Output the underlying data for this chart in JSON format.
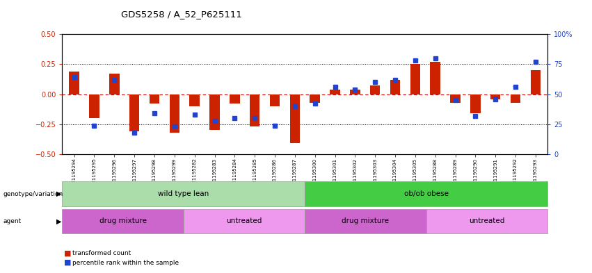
{
  "title": "GDS5258 / A_52_P625111",
  "samples": [
    "GSM1195294",
    "GSM1195295",
    "GSM1195296",
    "GSM1195297",
    "GSM1195298",
    "GSM1195299",
    "GSM1195282",
    "GSM1195283",
    "GSM1195284",
    "GSM1195285",
    "GSM1195286",
    "GSM1195287",
    "GSM1195300",
    "GSM1195301",
    "GSM1195302",
    "GSM1195303",
    "GSM1195304",
    "GSM1195305",
    "GSM1195288",
    "GSM1195289",
    "GSM1195290",
    "GSM1195291",
    "GSM1195292",
    "GSM1195293"
  ],
  "red_bars": [
    0.19,
    -0.2,
    0.17,
    -0.31,
    -0.08,
    -0.32,
    -0.1,
    -0.3,
    -0.08,
    -0.27,
    -0.1,
    -0.41,
    -0.07,
    0.04,
    0.04,
    0.07,
    0.12,
    0.25,
    0.27,
    -0.07,
    -0.16,
    -0.04,
    -0.07,
    0.2
  ],
  "blue_dots": [
    0.14,
    -0.26,
    0.12,
    -0.32,
    -0.16,
    -0.27,
    -0.17,
    -0.22,
    -0.2,
    -0.2,
    -0.26,
    -0.1,
    -0.08,
    0.06,
    0.04,
    0.1,
    0.12,
    0.28,
    0.3,
    -0.05,
    -0.18,
    -0.04,
    0.06,
    0.27
  ],
  "genotype_groups": [
    {
      "label": "wild type lean",
      "start": 0,
      "end": 11,
      "color": "#aaddaa"
    },
    {
      "label": "ob/ob obese",
      "start": 12,
      "end": 23,
      "color": "#44cc44"
    }
  ],
  "agent_groups": [
    {
      "label": "drug mixture",
      "start": 0,
      "end": 5,
      "color": "#cc66cc"
    },
    {
      "label": "untreated",
      "start": 6,
      "end": 11,
      "color": "#ee99ee"
    },
    {
      "label": "drug mixture",
      "start": 12,
      "end": 17,
      "color": "#cc66cc"
    },
    {
      "label": "untreated",
      "start": 18,
      "end": 23,
      "color": "#ee99ee"
    }
  ],
  "ylim": [
    -0.5,
    0.5
  ],
  "yticks_left": [
    -0.5,
    -0.25,
    0.0,
    0.25,
    0.5
  ],
  "right_tick_positions": [
    -0.5,
    -0.25,
    0.0,
    0.25,
    0.5
  ],
  "right_tick_labels": [
    "0",
    "25",
    "50",
    "75",
    "100%"
  ],
  "bar_color": "#CC2200",
  "dot_color": "#2244CC",
  "hline_color": "#CC0000",
  "legend_red": "transformed count",
  "legend_blue": "percentile rank within the sample",
  "bar_width": 0.5
}
